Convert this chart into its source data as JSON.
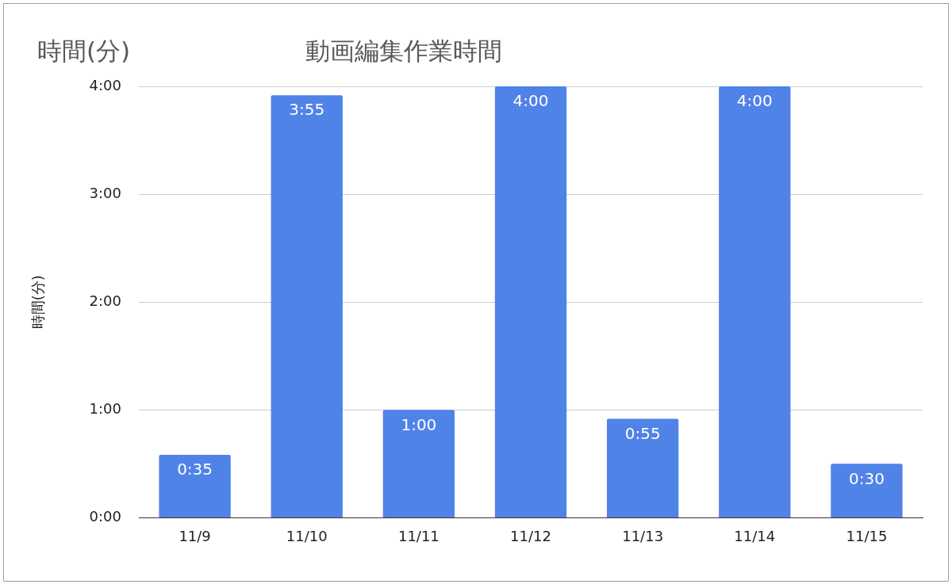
{
  "chart_data": {
    "type": "bar",
    "title": "動画編集作業時間",
    "ylabel": "時間(分)",
    "annotations": [
      "時間(分)"
    ],
    "categories": [
      "11/9",
      "11/10",
      "11/11",
      "11/12",
      "11/13",
      "11/14",
      "11/15"
    ],
    "values": [
      0.583,
      3.917,
      1,
      4,
      0.917,
      4,
      0.5
    ],
    "value_labels": [
      "0:35",
      "3:55",
      "1:00",
      "4:00",
      "0:55",
      "4:00",
      "0:30"
    ],
    "color": "#5083e8",
    "ylim": [
      0,
      4
    ],
    "yticks": [
      {
        "value": 0,
        "label": "0:00"
      },
      {
        "value": 1,
        "label": "1:00"
      },
      {
        "value": 2,
        "label": "2:00"
      },
      {
        "value": 3,
        "label": "3:00"
      },
      {
        "value": 4,
        "label": "4:00"
      }
    ],
    "grid": "y",
    "legend": false
  }
}
